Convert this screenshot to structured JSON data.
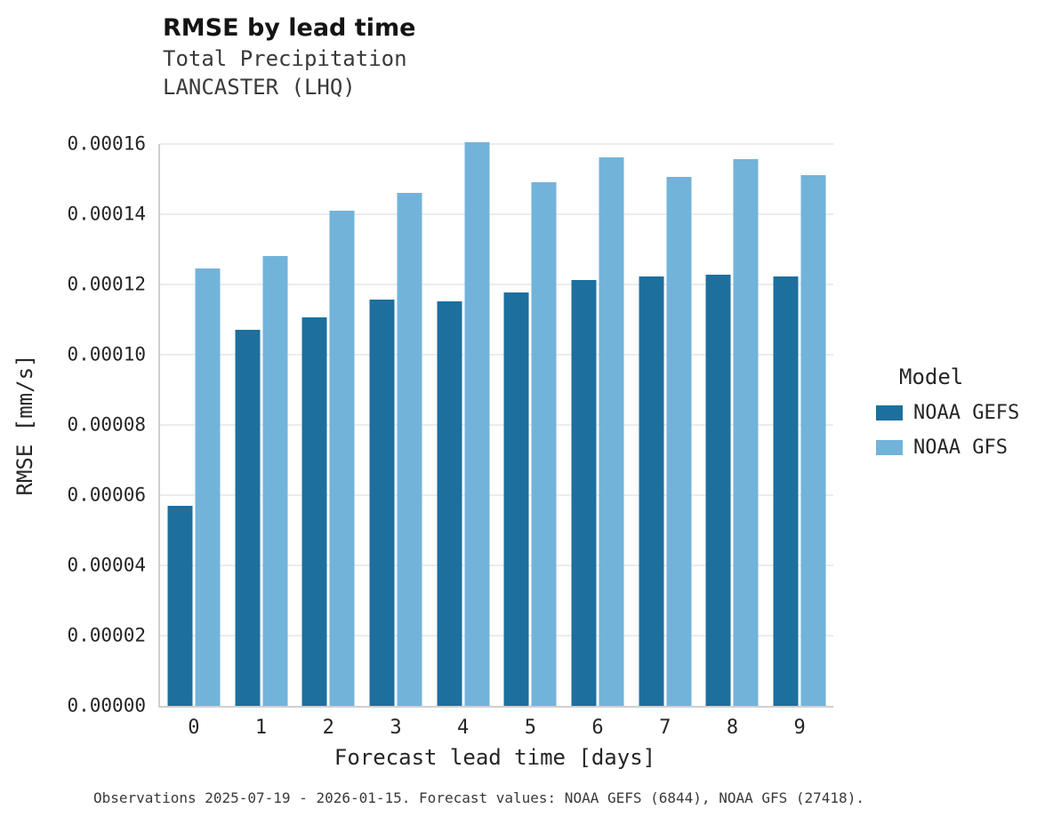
{
  "header": {
    "title": "RMSE by lead time",
    "subtitle1": "Total Precipitation",
    "subtitle2": "LANCASTER (LHQ)"
  },
  "legend": {
    "title": "Model"
  },
  "caption": "Observations 2025-07-19 - 2026-01-15. Forecast values: NOAA GEFS (6844), NOAA GFS (27418).",
  "chart_data": {
    "type": "bar",
    "title": "RMSE by lead time",
    "subtitle": [
      "Total Precipitation",
      "LANCASTER (LHQ)"
    ],
    "xlabel": "Forecast lead time [days]",
    "ylabel": "RMSE [mm/s]",
    "categories": [
      "0",
      "1",
      "2",
      "3",
      "4",
      "5",
      "6",
      "7",
      "8",
      "9"
    ],
    "series": [
      {
        "name": "NOAA GEFS",
        "color": "#1d6f9e",
        "values": [
          5.7e-05,
          0.000107,
          0.0001107,
          0.0001158,
          0.0001153,
          0.0001176,
          0.0001212,
          0.0001224,
          0.0001228,
          0.0001224
        ]
      },
      {
        "name": "NOAA GFS",
        "color": "#72b3da",
        "values": [
          0.0001245,
          0.0001281,
          0.0001409,
          0.0001462,
          0.0001604,
          0.0001491,
          0.0001562,
          0.0001506,
          0.0001556,
          0.0001512
        ]
      }
    ],
    "ylim": [
      0,
      0.00016
    ],
    "yticks": [
      0,
      2e-05,
      4e-05,
      6e-05,
      8e-05,
      0.0001,
      0.00012,
      0.00014,
      0.00016
    ],
    "ytick_decimals": 5,
    "grid": true,
    "legend_title": "Model",
    "legend_position": "right"
  }
}
